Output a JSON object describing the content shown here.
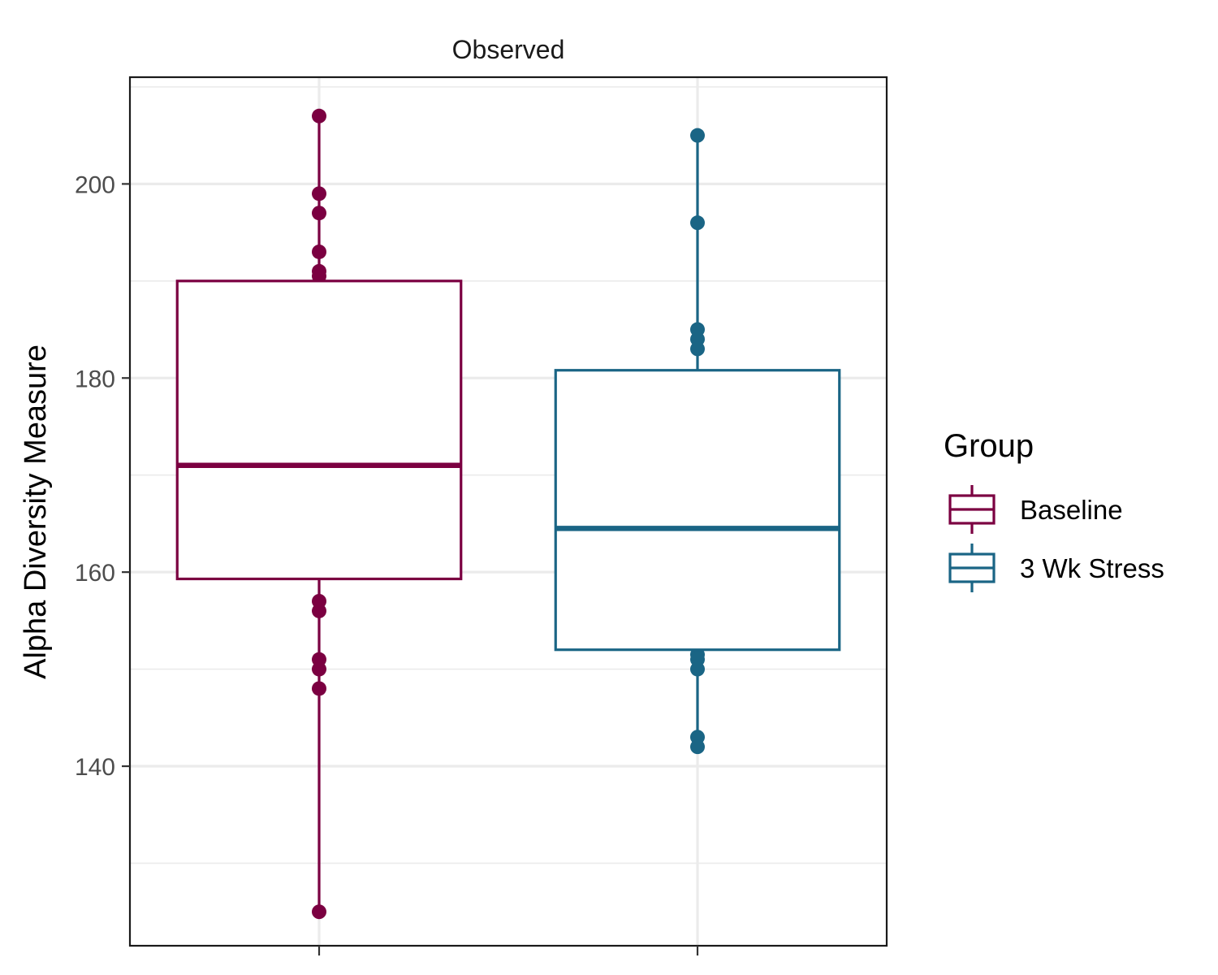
{
  "chart_data": {
    "type": "boxplot",
    "facet_title": "Observed",
    "xlabel": "",
    "ylabel": "Alpha Diversity Measure",
    "ylim": [
      121.5,
      211
    ],
    "yticks": [
      140,
      160,
      180,
      200
    ],
    "y_minor_gridlines": [
      130,
      150,
      170,
      190,
      210
    ],
    "grid": true,
    "legend": {
      "title": "Group",
      "position": "right"
    },
    "series": [
      {
        "name": "Baseline",
        "color": "#7b0041",
        "box": {
          "q1": 159.3,
          "median": 171,
          "q3": 190,
          "whisker_low": 125,
          "whisker_high": 207
        },
        "points": [
          207,
          199,
          197,
          193,
          191,
          190.5,
          157,
          156,
          151,
          150,
          148,
          125
        ]
      },
      {
        "name": "3 Wk Stress",
        "color": "#1a6585",
        "box": {
          "q1": 152,
          "median": 164.5,
          "q3": 180.8,
          "whisker_low": 142,
          "whisker_high": 205
        },
        "points": [
          205,
          196,
          185,
          184,
          183,
          151.5,
          151,
          150,
          143,
          142
        ]
      }
    ]
  }
}
